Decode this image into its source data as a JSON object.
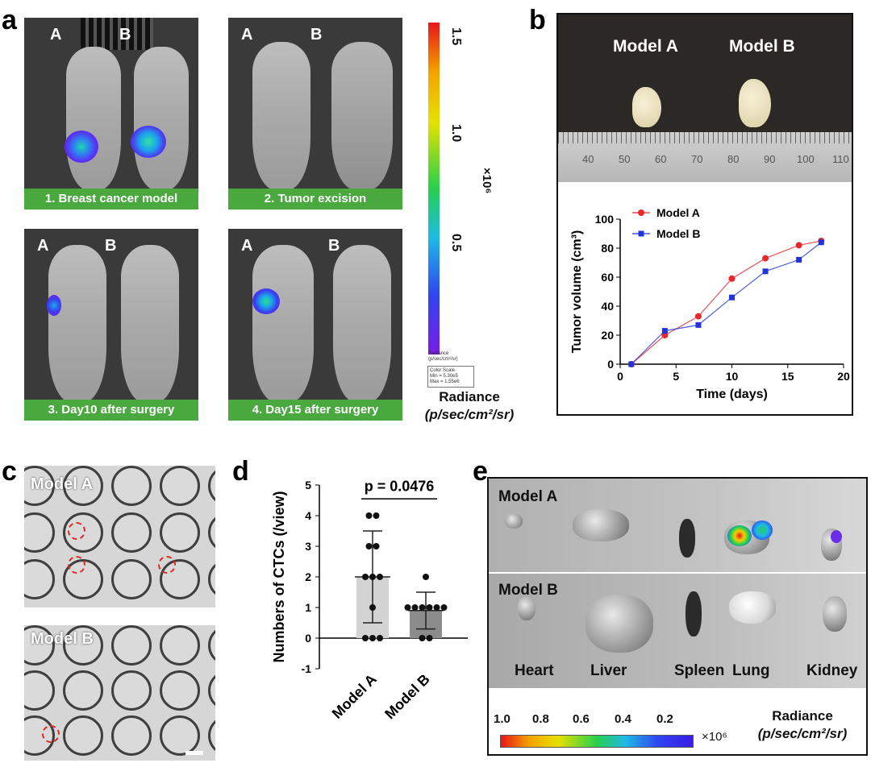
{
  "panel_letters": {
    "a": "a",
    "b": "b",
    "c": "c",
    "d": "d",
    "e": "e"
  },
  "panel_a": {
    "mouse_labels": {
      "A": "A",
      "B": "B"
    },
    "captions": [
      "1. Breast cancer model",
      "2. Tumor excision",
      "3. Day10 after surgery",
      "4. Day15 after surgery"
    ],
    "colorbar": {
      "ticks": [
        "1.5",
        "1.0",
        "0.5"
      ],
      "multiplier": "×10⁶",
      "legend_small": [
        "Radiance",
        "(p/sec/cm²/sr)"
      ],
      "color_scale_box": [
        "Color Scale",
        "Min = 5.30e5",
        "Max = 1.55e6"
      ],
      "title_line1": "Radiance",
      "title_line2": "(p/sec/cm²/sr)"
    }
  },
  "panel_b": {
    "photo_labels": [
      "Model A",
      "Model B"
    ],
    "ruler_ticks": [
      "40",
      "50",
      "60",
      "70",
      "80",
      "90",
      "100",
      "110"
    ]
  },
  "chart_data": [
    {
      "type": "line",
      "panel": "b",
      "xlabel": "Time (days)",
      "ylabel": "Tumor volume (cm³)",
      "xlim": [
        0,
        20
      ],
      "ylim": [
        0,
        100
      ],
      "xticks": [
        0,
        5,
        10,
        15,
        20
      ],
      "yticks": [
        0,
        20,
        40,
        60,
        80,
        100
      ],
      "legend_position": "top-left",
      "series": [
        {
          "name": "Model A",
          "color": "#e8262c",
          "marker": "circle",
          "x": [
            1,
            4,
            7,
            10,
            13,
            16,
            18
          ],
          "y": [
            0,
            20,
            33,
            59,
            73,
            82,
            85
          ]
        },
        {
          "name": "Model B",
          "color": "#2233dd",
          "marker": "square",
          "x": [
            1,
            4,
            7,
            10,
            13,
            16,
            18
          ],
          "y": [
            0,
            23,
            27,
            46,
            64,
            72,
            84
          ]
        }
      ]
    },
    {
      "type": "scatter",
      "panel": "d",
      "ylabel": "Numbers of CTCs (/view)",
      "categories": [
        "Model A",
        "Model B"
      ],
      "ylim": [
        -1,
        5
      ],
      "yticks": [
        -1,
        0,
        1,
        2,
        3,
        4,
        5
      ],
      "annotation": "p = 0.0476",
      "bars": [
        {
          "category": "Model A",
          "mean": 2.0,
          "sd_low": 0.5,
          "sd_high": 3.5,
          "color": "#d3d3d3"
        },
        {
          "category": "Model B",
          "mean": 0.9,
          "sd_low": 0.3,
          "sd_high": 1.5,
          "color": "#8c8c8c"
        }
      ],
      "points": [
        {
          "category": "Model A",
          "values": [
            4,
            4,
            3,
            3,
            2,
            2,
            2,
            1,
            0,
            0,
            0
          ]
        },
        {
          "category": "Model B",
          "values": [
            2,
            1,
            1,
            1,
            1,
            1,
            1,
            0,
            0
          ]
        }
      ]
    }
  ],
  "panel_c": {
    "labels": [
      "Model A",
      "Model B"
    ]
  },
  "panel_e": {
    "model_labels": [
      "Model A",
      "Model B"
    ],
    "organ_labels": [
      "Heart",
      "Liver",
      "Spleen",
      "Lung",
      "Kidney"
    ],
    "colorbar_ticks": [
      "1.0",
      "0.8",
      "0.6",
      "0.4",
      "0.2"
    ],
    "multiplier": "×10⁶",
    "title_line1": "Radiance",
    "title_line2": "(p/sec/cm²/sr)"
  }
}
